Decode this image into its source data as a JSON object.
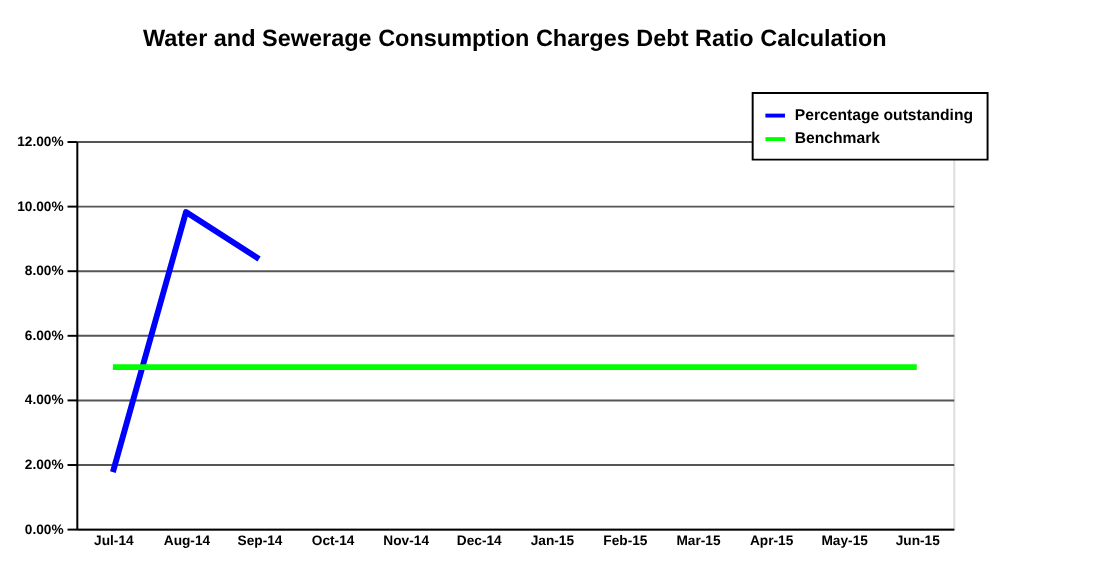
{
  "chart_data": {
    "type": "line",
    "title": "Water and  Sewerage Consumption Charges Debt Ratio Calculation",
    "categories": [
      "Jul-14",
      "Aug-14",
      "Sep-14",
      "Oct-14",
      "Nov-14",
      "Dec-14",
      "Jan-15",
      "Feb-15",
      "Mar-15",
      "Apr-15",
      "May-15",
      "Jun-15"
    ],
    "series": [
      {
        "name": "Percentage outstanding",
        "color": "#0000ff",
        "values": [
          1.75,
          9.8,
          8.35,
          null,
          null,
          null,
          null,
          null,
          null,
          null,
          null,
          null
        ]
      },
      {
        "name": "Benchmark",
        "color": "#00ff00",
        "values": [
          5,
          5,
          5,
          5,
          5,
          5,
          5,
          5,
          5,
          5,
          5,
          5
        ]
      }
    ],
    "ylim": [
      0,
      12
    ],
    "yticks": [
      {
        "value": 0,
        "label": "0.00%"
      },
      {
        "value": 2,
        "label": "2.00%"
      },
      {
        "value": 4,
        "label": "4.00%"
      },
      {
        "value": 6,
        "label": "6.00%"
      },
      {
        "value": 8,
        "label": "8.00%"
      },
      {
        "value": 10,
        "label": "10.00%"
      },
      {
        "value": 12,
        "label": "12.00%"
      }
    ],
    "grid": "y",
    "legend": "top right",
    "marker": "none",
    "line_style": "solid"
  }
}
